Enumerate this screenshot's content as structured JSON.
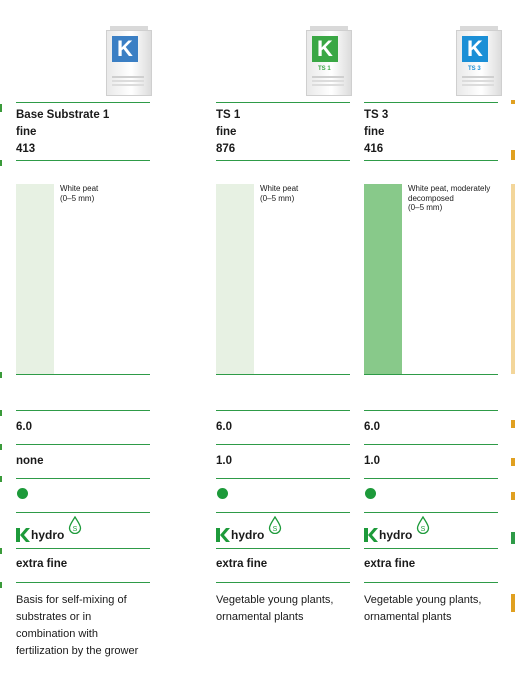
{
  "columns": [
    {
      "bag_logo_letter": "K",
      "bag_color": "#3b7fc4",
      "bag_tag": "",
      "name": "Base Substrate 1",
      "structure": "fine",
      "code": "413",
      "peat_label": "White peat\n(0–5 mm)",
      "peat_color": "#e7f1e3",
      "ph": "6.0",
      "fertilizer": "none",
      "wetting_agent": "hydro",
      "grade": "extra fine",
      "description": "Basis for self-mixing of substrates or in combination with fertilization by the grower"
    },
    {
      "bag_logo_letter": "K",
      "bag_color": "#3aa745",
      "bag_tag": "TS 1",
      "name": "TS 1",
      "structure": "fine",
      "code": "876",
      "peat_label": "White peat\n(0–5 mm)",
      "peat_color": "#e7f1e3",
      "ph": "6.0",
      "fertilizer": "1.0",
      "wetting_agent": "hydro",
      "grade": "extra fine",
      "description": "Vegetable young plants, ornamental plants"
    },
    {
      "bag_logo_letter": "K",
      "bag_color": "#1b8fd6",
      "bag_tag": "TS 3",
      "name": "TS 3",
      "structure": "fine",
      "code": "416",
      "peat_label": "White peat, moderately decomposed\n(0–5 mm)",
      "peat_color": "#88c98a",
      "ph": "6.0",
      "fertilizer": "1.0",
      "wetting_agent": "hydro",
      "grade": "extra fine",
      "description": "Vegetable young plants, ornamental plants"
    }
  ],
  "colors": {
    "rule": "#2e9b47",
    "dot": "#1d9a3a",
    "brand_green": "#1d9a3a"
  }
}
